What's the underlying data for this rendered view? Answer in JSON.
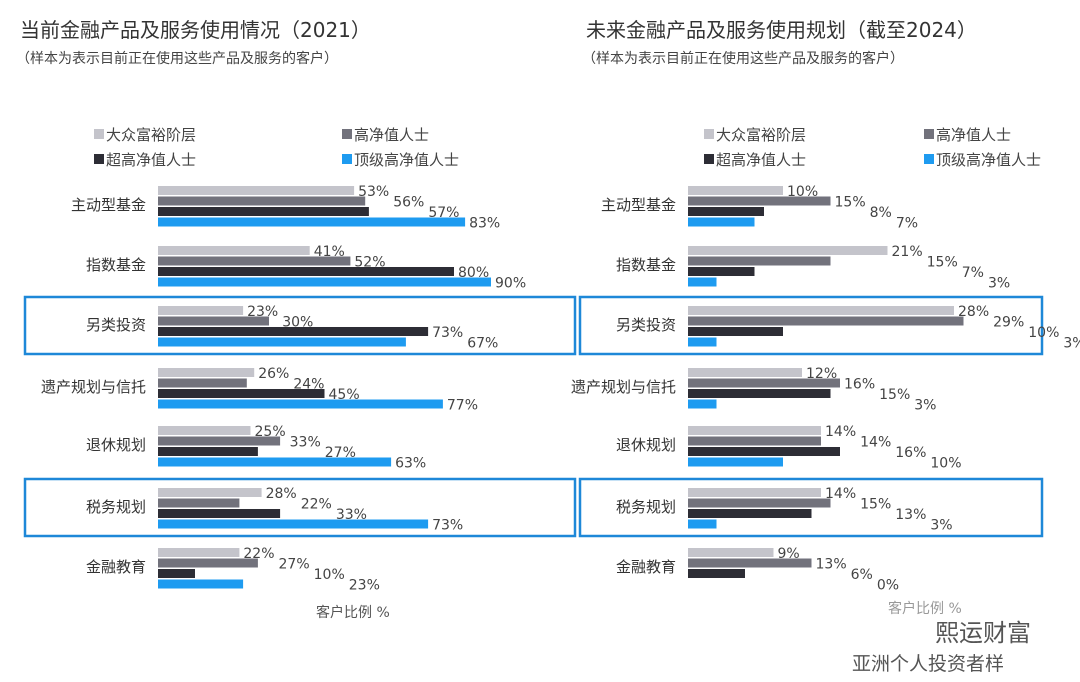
{
  "colors": {
    "mass_affluent": "#c4c4cb",
    "hnw": "#72727c",
    "uhnw": "#2d2d35",
    "top_hnw": "#1e9bf0",
    "highlight": "#1e88d8"
  },
  "chart_data": [
    {
      "type": "bar",
      "orientation": "horizontal",
      "title": "当前金融产品及服务使用情况（2021）",
      "subtitle": "（样本为表示目前正在使用这些产品及服务的客户）",
      "xlabel": "客户比例 %",
      "legend_position": "top",
      "categories": [
        "主动型基金",
        "指数基金",
        "另类投资",
        "遗产规划与信托",
        "退休规划",
        "税务规划",
        "金融教育"
      ],
      "highlighted": [
        "另类投资",
        "税务规划"
      ],
      "series": [
        {
          "name": "大众富裕阶层",
          "values": [
            53,
            41,
            23,
            26,
            25,
            28,
            22
          ]
        },
        {
          "name": "高净值人士",
          "values": [
            56,
            52,
            30,
            24,
            33,
            22,
            27
          ]
        },
        {
          "name": "超高净值人士",
          "values": [
            57,
            80,
            73,
            45,
            27,
            33,
            10
          ]
        },
        {
          "name": "顶级高净值人士",
          "values": [
            83,
            90,
            67,
            77,
            63,
            73,
            23
          ]
        }
      ]
    },
    {
      "type": "bar",
      "orientation": "horizontal",
      "title": "未来金融产品及服务使用规划（截至2024）",
      "subtitle": "（样本为表示目前正在使用这些产品及服务的客户）",
      "xlabel": "客户比例 %",
      "legend_position": "top",
      "categories": [
        "主动型基金",
        "指数基金",
        "另类投资",
        "遗产规划与信托",
        "退休规划",
        "税务规划",
        "金融教育"
      ],
      "highlighted": [
        "另类投资",
        "税务规划"
      ],
      "series": [
        {
          "name": "大众富裕阶层",
          "values": [
            10,
            21,
            28,
            12,
            14,
            14,
            9
          ]
        },
        {
          "name": "高净值人士",
          "values": [
            15,
            15,
            29,
            16,
            14,
            15,
            13
          ]
        },
        {
          "name": "超高净值人士",
          "values": [
            8,
            7,
            10,
            15,
            16,
            13,
            6
          ]
        },
        {
          "name": "顶级高净值人士",
          "values": [
            7,
            3,
            3,
            3,
            10,
            3,
            0
          ]
        }
      ]
    }
  ],
  "watermark": "熙运财富",
  "footer": "亚洲个人投资者样"
}
